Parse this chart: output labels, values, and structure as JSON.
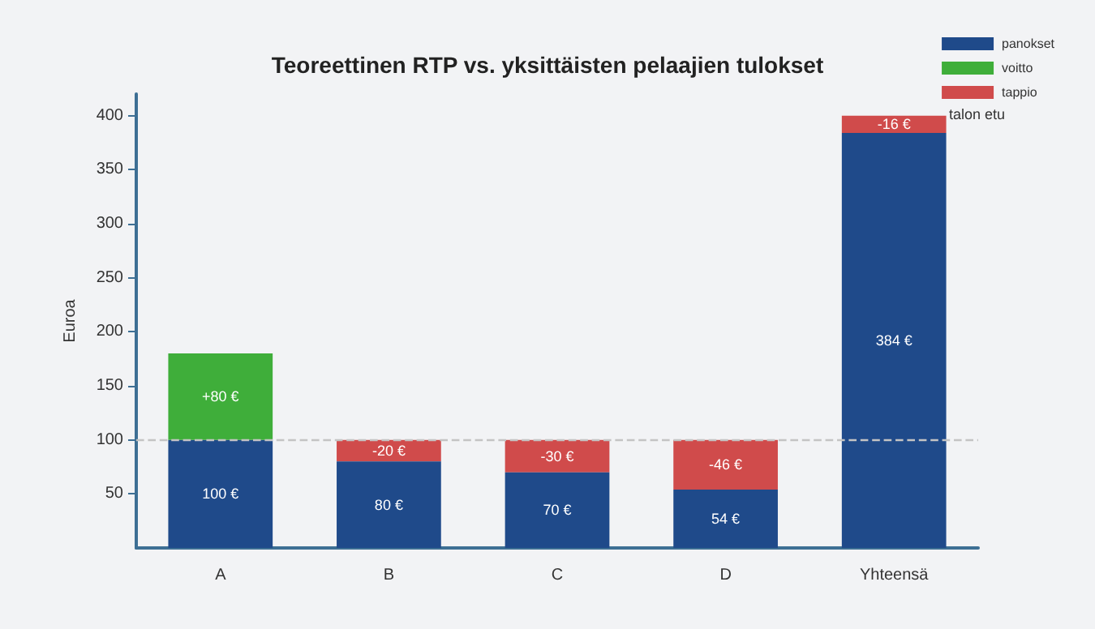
{
  "chart_data": {
    "type": "bar",
    "title": "Teoreettinen RTP vs. yksittäisten pelaajien tulokset",
    "ylabel": "Euroa",
    "categories": [
      "A",
      "B",
      "C",
      "D",
      "Yhteensä"
    ],
    "stacked": true,
    "series": [
      {
        "name": "panokset",
        "color": "#1f4a8a",
        "values": [
          100,
          80,
          70,
          54,
          384
        ],
        "value_labels": [
          "100 €",
          "80 €",
          "70 €",
          "54 €",
          "384 €"
        ]
      },
      {
        "name": "voitto",
        "color": "#3fae3a",
        "values": [
          80,
          null,
          null,
          null,
          null
        ],
        "value_labels": [
          "+80 €",
          null,
          null,
          null,
          null
        ]
      },
      {
        "name": "tappio",
        "color": "#d04b4b",
        "base": [
          null,
          100,
          100,
          100,
          400
        ],
        "values": [
          null,
          -20,
          -30,
          -46,
          -16
        ],
        "value_labels": [
          null,
          "-20 €",
          "-30 €",
          "-46 €",
          "-16 €"
        ]
      }
    ],
    "ylim": [
      0,
      420
    ],
    "yticks": [
      50,
      100,
      150,
      200,
      250,
      300,
      350,
      400
    ],
    "ref_lines": [
      {
        "axis": "y",
        "value": 100,
        "color": "#c4c4c4",
        "line_style": "dashed"
      }
    ],
    "annotations": [
      "talon etu"
    ],
    "legend": "top right",
    "grid": false
  }
}
